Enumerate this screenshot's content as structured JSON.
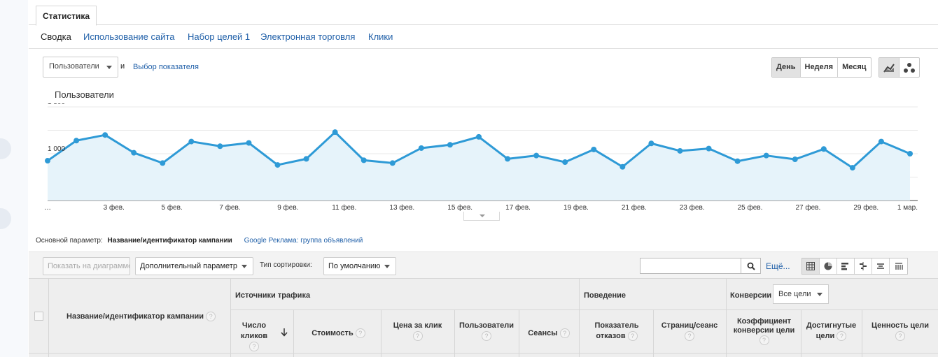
{
  "tabs": {
    "main": "Статистика"
  },
  "subnav": [
    "Сводка",
    "Использование сайта",
    "Набор целей 1",
    "Электронная торговля",
    "Клики"
  ],
  "metric": {
    "selected": "Пользователи",
    "and": "и",
    "pick": "Выбор показателя"
  },
  "period": {
    "day": "День",
    "week": "Неделя",
    "month": "Месяц"
  },
  "chart_data": {
    "type": "area",
    "series_label": "Пользователи",
    "y_ticks": [
      "1 500",
      "1 000"
    ],
    "ylim": [
      500,
      1500
    ],
    "x_tick_labels": [
      "…",
      "3 фев.",
      "5 фев.",
      "7 фев.",
      "9 фев.",
      "11 фев.",
      "13 фев.",
      "15 фев.",
      "17 фев.",
      "19 фев.",
      "21 фев.",
      "23 фев.",
      "25 фев.",
      "27 фев.",
      "29 фев.",
      "1 мар."
    ],
    "x": [
      "1 фев.",
      "2 фев.",
      "3 фев.",
      "4 фев.",
      "5 фев.",
      "6 фев.",
      "7 фев.",
      "8 фев.",
      "9 фев.",
      "10 фев.",
      "11 фев.",
      "12 фев.",
      "13 фев.",
      "14 фев.",
      "15 фев.",
      "16 фев.",
      "17 фев.",
      "18 фев.",
      "19 фев.",
      "20 фев.",
      "21 фев.",
      "22 фев.",
      "23 фев.",
      "24 фев.",
      "25 фев.",
      "26 фев.",
      "27 фев.",
      "28 фев.",
      "29 фев.",
      "1 мар.",
      "2 мар."
    ],
    "values": [
      925,
      1140,
      1200,
      1010,
      900,
      1130,
      1080,
      1115,
      880,
      945,
      1230,
      930,
      900,
      1060,
      1095,
      1180,
      945,
      980,
      910,
      1045,
      860,
      1110,
      1030,
      1055,
      920,
      980,
      940,
      1050,
      850,
      1130,
      1000
    ],
    "color": "#2e9ad6",
    "fill": "#e6f3fa",
    "grid": true
  },
  "dimension": {
    "label": "Основной параметр:",
    "current": "Название/идентификатор кампании",
    "alt": "Google Реклама: группа объявлений"
  },
  "toolbar": {
    "plot": "Показать на диаграмме",
    "secondary": "Дополнительный параметр",
    "sort_label": "Тип сортировки:",
    "sort_value": "По умолчанию",
    "more": "Ещё..."
  },
  "table": {
    "col_campaign": "Название/идентификатор кампании",
    "group_traffic": "Источники трафика",
    "group_behavior": "Поведение",
    "group_conversions": "Конверсии",
    "goal_select": "Все цели",
    "cols": {
      "clicks": "Число кликов",
      "cost": "Стоимость",
      "cpc": "Цена за клик",
      "users": "Пользователи",
      "sessions": "Сеансы",
      "bounce": "Показатель отказов",
      "pages": "Страниц/сеанс",
      "conv_rate": "Коэффициент конверсии цели",
      "goals": "Достигнутые цели",
      "goal_value": "Ценность цели"
    },
    "help": "?"
  }
}
